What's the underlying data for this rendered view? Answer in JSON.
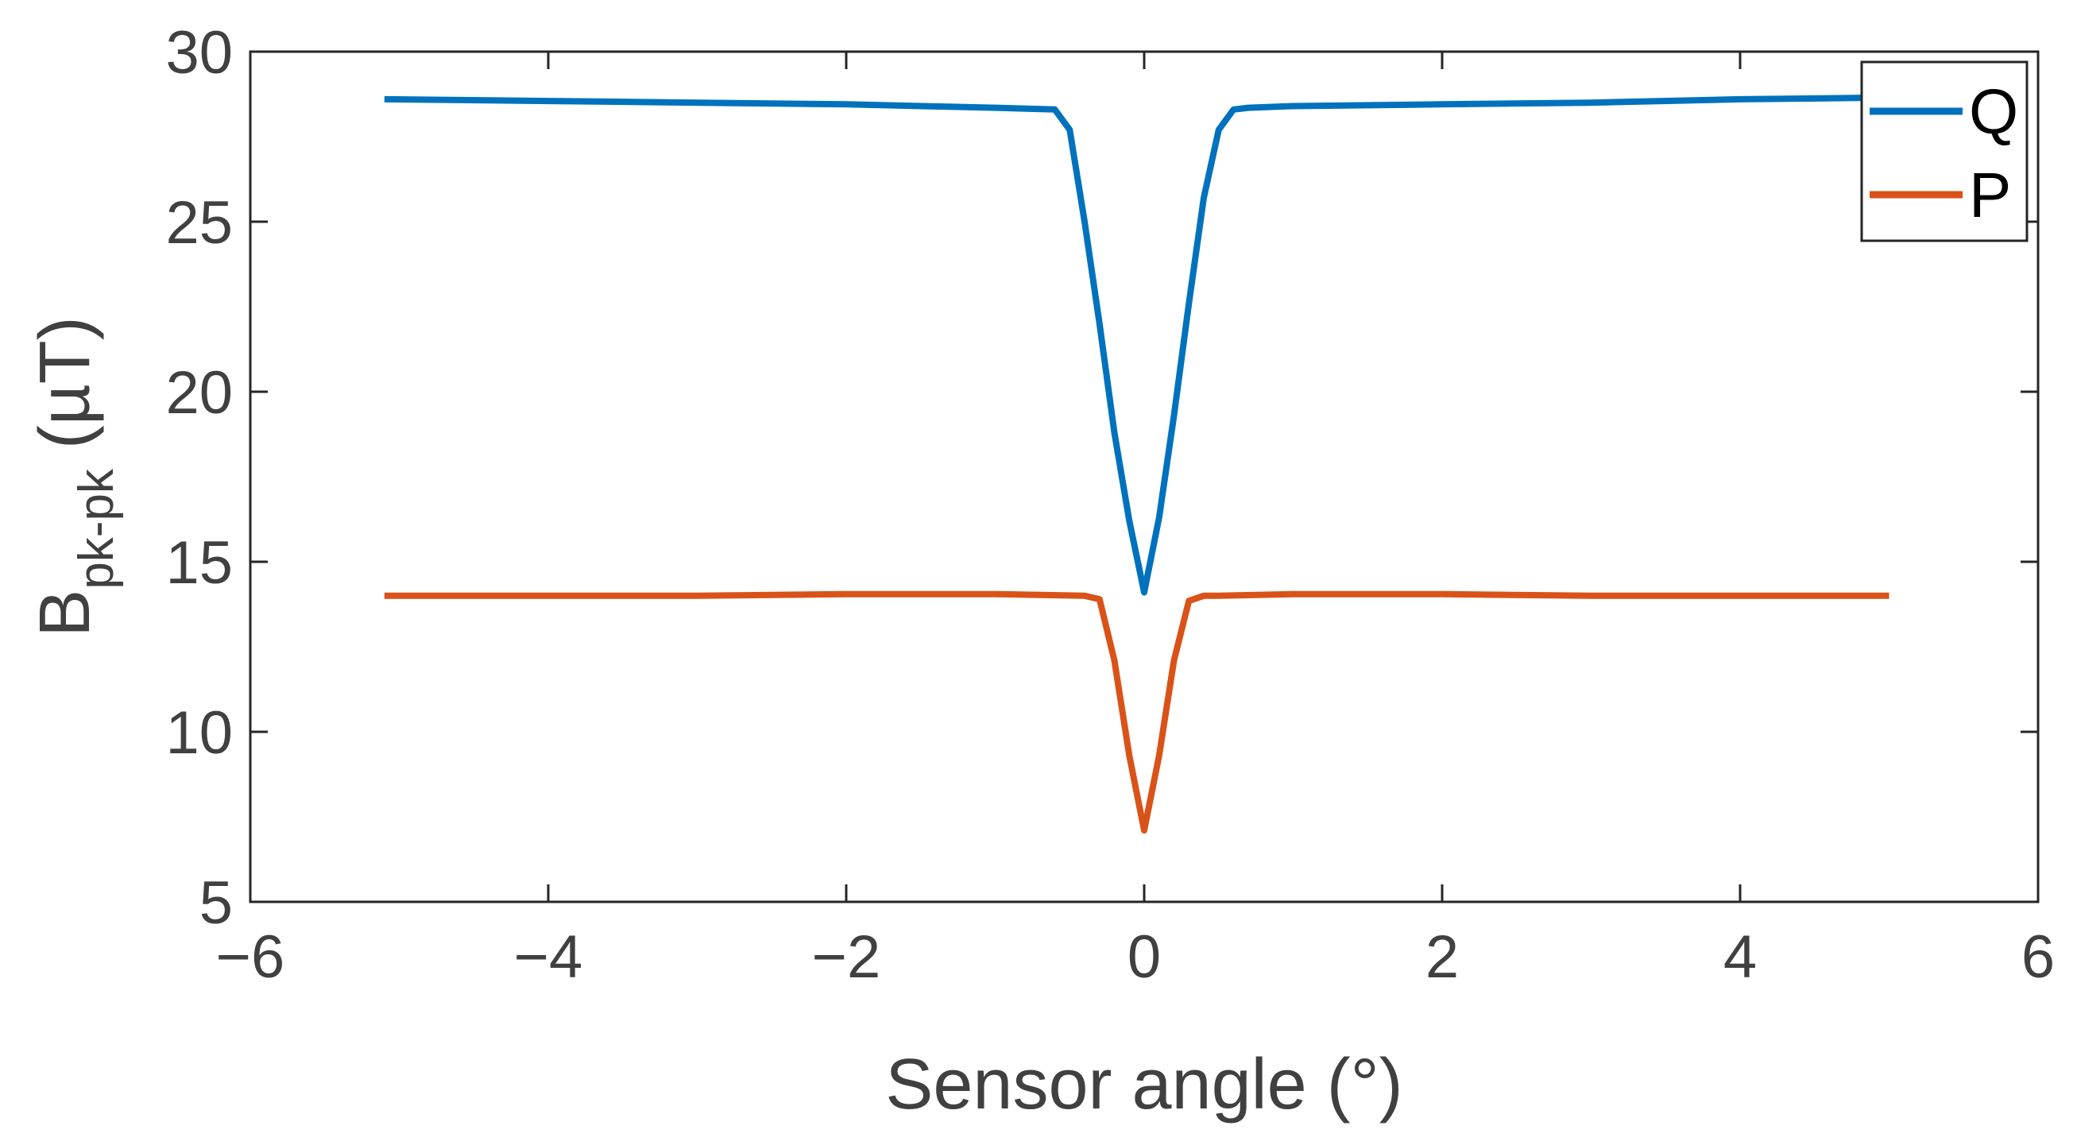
{
  "chart_data": {
    "type": "line",
    "xlabel": "Sensor angle (°)",
    "ylabel": {
      "base": "B",
      "subscript": "pk-pk",
      "suffix": " (µT)"
    },
    "xlim": [
      -6,
      6
    ],
    "ylim": [
      5,
      30
    ],
    "x_ticks": [
      -6,
      -4,
      -2,
      0,
      2,
      4,
      6
    ],
    "x_tick_labels": [
      "−6",
      "−4",
      "−2",
      "0",
      "2",
      "4",
      "6"
    ],
    "y_ticks": [
      5,
      10,
      15,
      20,
      25,
      30
    ],
    "y_tick_labels": [
      "5",
      "10",
      "15",
      "20",
      "25",
      "30"
    ],
    "grid": false,
    "legend_position": "top-right",
    "series": [
      {
        "name": "Q",
        "color": "#0072BD",
        "x": [
          -5.1,
          -4.0,
          -3.0,
          -2.0,
          -1.0,
          -0.6,
          -0.5,
          -0.4,
          -0.3,
          -0.2,
          -0.1,
          0.0,
          0.1,
          0.2,
          0.3,
          0.4,
          0.5,
          0.6,
          0.7,
          1.0,
          2.0,
          3.0,
          4.0,
          5.0
        ],
        "y": [
          28.6,
          28.55,
          28.5,
          28.45,
          28.35,
          28.3,
          27.7,
          25.0,
          22.0,
          18.8,
          16.2,
          14.1,
          16.3,
          19.3,
          22.6,
          25.7,
          27.7,
          28.3,
          28.35,
          28.4,
          28.45,
          28.5,
          28.6,
          28.65
        ]
      },
      {
        "name": "P",
        "color": "#D95319",
        "x": [
          -5.1,
          -4.0,
          -3.0,
          -2.0,
          -1.0,
          -0.4,
          -0.3,
          -0.2,
          -0.1,
          0.0,
          0.1,
          0.2,
          0.3,
          0.4,
          0.5,
          1.0,
          2.0,
          3.0,
          4.0,
          5.0
        ],
        "y": [
          14.0,
          14.0,
          14.0,
          14.05,
          14.05,
          14.0,
          13.9,
          12.1,
          9.3,
          7.1,
          9.3,
          12.1,
          13.85,
          14.0,
          14.0,
          14.05,
          14.05,
          14.0,
          14.0,
          14.0
        ]
      }
    ]
  }
}
